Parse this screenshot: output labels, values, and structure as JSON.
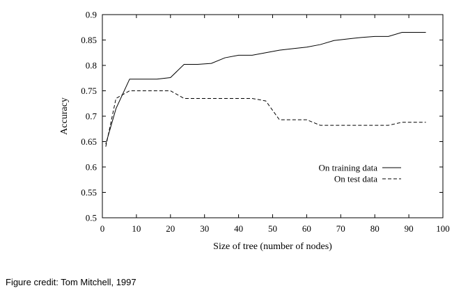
{
  "chart_data": {
    "type": "line",
    "xlabel": "Size of tree (number of nodes)",
    "ylabel": "Accuracy",
    "xlim": [
      0,
      100
    ],
    "ylim": [
      0.5,
      0.9
    ],
    "xticks": [
      0,
      10,
      20,
      30,
      40,
      50,
      60,
      70,
      80,
      90,
      100
    ],
    "yticks": [
      0.5,
      0.55,
      0.6,
      0.65,
      0.7,
      0.75,
      0.8,
      0.85,
      0.9
    ],
    "xtick_labels": [
      "0",
      "10",
      "20",
      "30",
      "40",
      "50",
      "60",
      "70",
      "80",
      "90",
      "100"
    ],
    "ytick_labels": [
      "0.5",
      "0.55",
      "0.6",
      "0.65",
      "0.7",
      "0.75",
      "0.8",
      "0.85",
      "0.9"
    ],
    "legend_position": "center-right",
    "grid": false,
    "series": [
      {
        "name": "On training data",
        "style": "solid",
        "x": [
          1,
          4,
          8,
          12,
          16,
          20,
          24,
          28,
          32,
          36,
          40,
          44,
          48,
          52,
          56,
          60,
          64,
          68,
          72,
          76,
          80,
          84,
          88,
          95
        ],
        "y": [
          0.645,
          0.715,
          0.773,
          0.773,
          0.773,
          0.776,
          0.802,
          0.802,
          0.804,
          0.815,
          0.82,
          0.82,
          0.825,
          0.83,
          0.833,
          0.836,
          0.841,
          0.849,
          0.852,
          0.855,
          0.857,
          0.857,
          0.865,
          0.865
        ]
      },
      {
        "name": "On test data",
        "style": "dashed",
        "x": [
          1,
          4,
          8,
          12,
          16,
          20,
          24,
          28,
          32,
          36,
          40,
          44,
          48,
          52,
          56,
          60,
          64,
          68,
          72,
          76,
          80,
          84,
          88,
          95
        ],
        "y": [
          0.64,
          0.735,
          0.75,
          0.75,
          0.75,
          0.75,
          0.735,
          0.735,
          0.735,
          0.735,
          0.735,
          0.735,
          0.73,
          0.693,
          0.693,
          0.693,
          0.682,
          0.682,
          0.682,
          0.682,
          0.682,
          0.682,
          0.688,
          0.688
        ]
      }
    ]
  },
  "caption": "Figure credit: Tom Mitchell, 1997"
}
